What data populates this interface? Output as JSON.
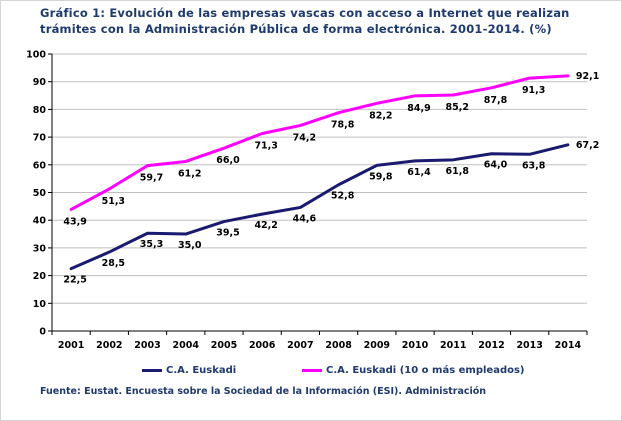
{
  "title": "Gráfico 1: Evolución de las empresas vascas con acceso a Internet que realizan trámites con la Administración Pública de forma electrónica. 2001-2014. (%)",
  "source": "Fuente: Eustat. Encuesta sobre la Sociedad de la Información (ESI). Administración",
  "chart_data": {
    "type": "line",
    "title": "Gráfico 1: Evolución de las empresas vascas con acceso a Internet que realizan trámites con la Administración Pública de forma electrónica. 2001-2014. (%)",
    "xlabel": "",
    "ylabel": "",
    "ylim": [
      0,
      100
    ],
    "yticks": [
      0,
      10,
      20,
      30,
      40,
      50,
      60,
      70,
      80,
      90,
      100
    ],
    "grid": true,
    "categories": [
      "2001",
      "2002",
      "2003",
      "2004",
      "2005",
      "2006",
      "2007",
      "2008",
      "2009",
      "2010",
      "2011",
      "2012",
      "2013",
      "2014"
    ],
    "series": [
      {
        "name": "C.A. Euskadi",
        "color": "#1a1a6e",
        "values": [
          22.5,
          28.5,
          35.3,
          35.0,
          39.5,
          42.2,
          44.6,
          52.8,
          59.8,
          61.4,
          61.8,
          64.0,
          63.8,
          67.2
        ],
        "labels": [
          "22,5",
          "28,5",
          "35,3",
          "35,0",
          "39,5",
          "42,2",
          "44,6",
          "52,8",
          "59,8",
          "61,4",
          "61,8",
          "64,0",
          "63,8",
          "67,2"
        ]
      },
      {
        "name": "C.A. Euskadi (10 o más empleados)",
        "color": "#ff00ff",
        "values": [
          43.9,
          51.3,
          59.7,
          61.2,
          66.0,
          71.3,
          74.2,
          78.8,
          82.2,
          84.9,
          85.2,
          87.8,
          91.3,
          92.1
        ],
        "labels": [
          "43,9",
          "51,3",
          "59,7",
          "61,2",
          "66,0",
          "71,3",
          "74,2",
          "78,8",
          "82,2",
          "84,9",
          "85,2",
          "87,8",
          "91,3",
          "92,1"
        ]
      }
    ],
    "legend_position": "bottom"
  }
}
